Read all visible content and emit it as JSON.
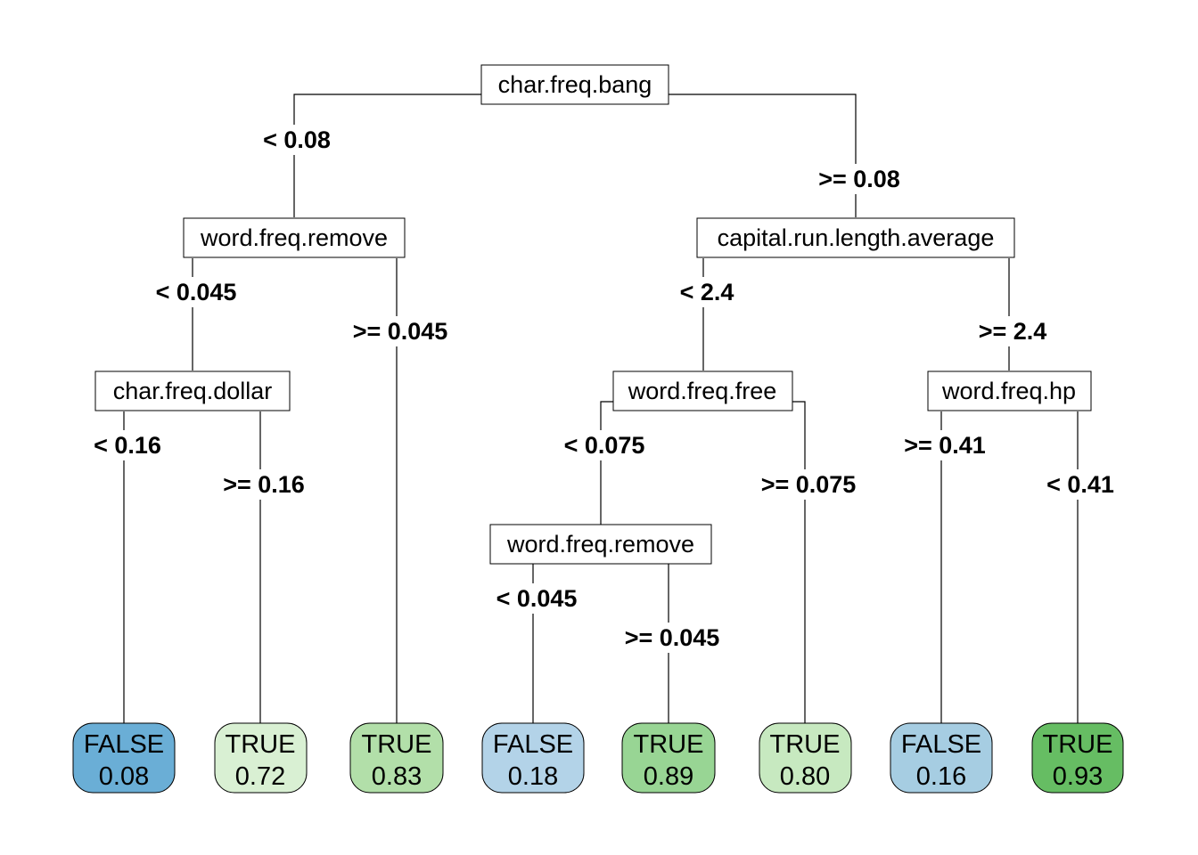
{
  "nodes": {
    "root": "char.freq.bang",
    "n_left": "word.freq.remove",
    "n_right": "capital.run.length.average",
    "n_ll": "char.freq.dollar",
    "n_rl": "word.freq.free",
    "n_rr": "word.freq.hp",
    "n_rll": "word.freq.remove"
  },
  "splits": {
    "root_left": "< 0.08",
    "root_right": ">= 0.08",
    "left_left": "< 0.045",
    "left_right": ">= 0.045",
    "right_left": "< 2.4",
    "right_right": ">= 2.4",
    "ll_left": "< 0.16",
    "ll_right": ">= 0.16",
    "rl_left": "< 0.075",
    "rl_right": ">= 0.075",
    "rr_left": ">= 0.41",
    "rr_right": "< 0.41",
    "rll_left": "< 0.045",
    "rll_right": ">= 0.045"
  },
  "leaves": [
    {
      "class": "FALSE",
      "prob": "0.08",
      "color": "#6aaed6"
    },
    {
      "class": "TRUE",
      "prob": "0.72",
      "color": "#d9f0d3"
    },
    {
      "class": "TRUE",
      "prob": "0.83",
      "color": "#b2dfa9"
    },
    {
      "class": "FALSE",
      "prob": "0.18",
      "color": "#b3d3e8"
    },
    {
      "class": "TRUE",
      "prob": "0.89",
      "color": "#98d594"
    },
    {
      "class": "TRUE",
      "prob": "0.80",
      "color": "#c7e9c0"
    },
    {
      "class": "FALSE",
      "prob": "0.16",
      "color": "#a6cde2"
    },
    {
      "class": "TRUE",
      "prob": "0.93",
      "color": "#66bd63"
    }
  ]
}
